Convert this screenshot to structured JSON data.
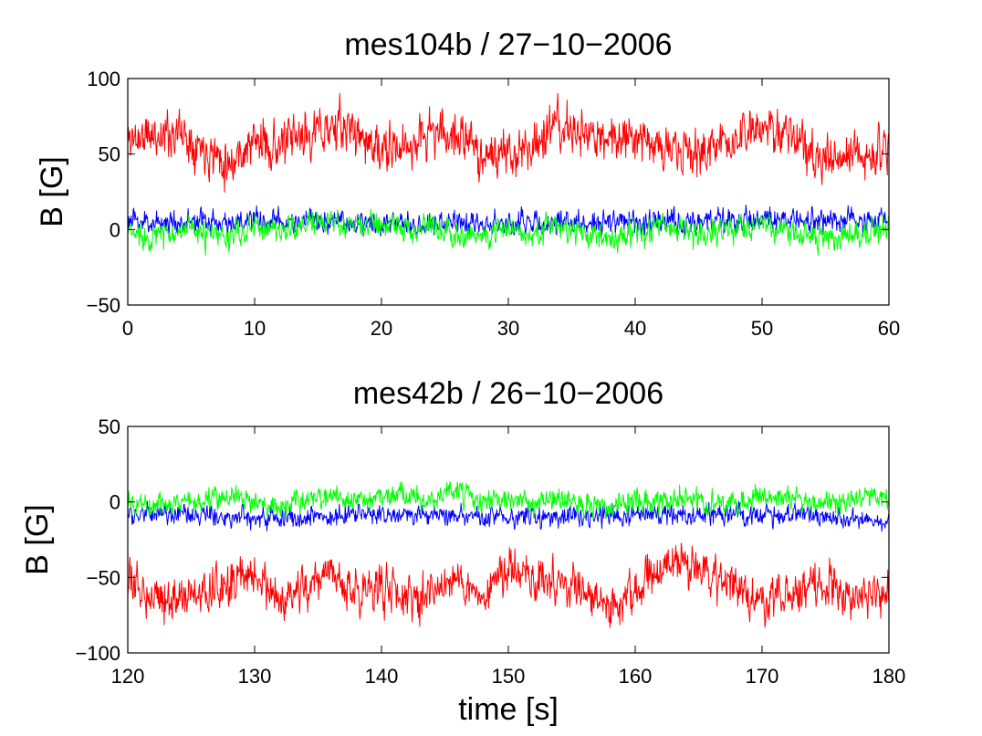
{
  "chart_data": [
    {
      "type": "line",
      "title": "mes104b / 27−10−2006",
      "xlabel": "",
      "ylabel": "B [G]",
      "xlim": [
        0,
        60
      ],
      "ylim": [
        -50,
        100
      ],
      "xticks": [
        0,
        10,
        20,
        30,
        40,
        50,
        60
      ],
      "xtick_labels": [
        "0",
        "10",
        "20",
        "30",
        "40",
        "50",
        "60"
      ],
      "yticks": [
        -50,
        0,
        50,
        100
      ],
      "ytick_labels": [
        "−50",
        "0",
        "50",
        "100"
      ],
      "series": [
        {
          "name": "red",
          "color": "#ff0000",
          "x": [
            0,
            2,
            4,
            6,
            8,
            10,
            12,
            14,
            16,
            18,
            20,
            22,
            24,
            26,
            28,
            30,
            32,
            34,
            36,
            38,
            40,
            42,
            44,
            46,
            48,
            50,
            52,
            54,
            56,
            58,
            60
          ],
          "mean": [
            60,
            62,
            65,
            55,
            45,
            58,
            55,
            62,
            68,
            65,
            50,
            55,
            65,
            62,
            50,
            48,
            58,
            68,
            62,
            60,
            65,
            55,
            48,
            55,
            60,
            65,
            68,
            45,
            45,
            50,
            55
          ],
          "noise": 14,
          "seed": 11
        },
        {
          "name": "blue",
          "color": "#0000ff",
          "x": [
            0,
            10,
            20,
            30,
            40,
            50,
            60
          ],
          "mean": [
            5,
            5,
            5,
            4,
            5,
            6,
            5
          ],
          "noise": 7,
          "seed": 23
        },
        {
          "name": "green",
          "color": "#00ff00",
          "x": [
            0,
            2,
            4,
            6,
            8,
            10,
            12,
            14,
            16,
            18,
            20,
            22,
            24,
            26,
            28,
            30,
            32,
            34,
            36,
            38,
            40,
            42,
            44,
            46,
            48,
            50,
            52,
            54,
            56,
            58,
            60
          ],
          "mean": [
            -2,
            -5,
            0,
            -3,
            -6,
            2,
            0,
            3,
            5,
            2,
            4,
            0,
            3,
            -2,
            -5,
            0,
            -2,
            3,
            -4,
            -6,
            -2,
            2,
            -1,
            -3,
            0,
            2,
            0,
            -4,
            -6,
            -2,
            3
          ],
          "noise": 8,
          "seed": 37
        }
      ]
    },
    {
      "type": "line",
      "title": "mes42b / 26−10−2006",
      "xlabel": "time [s]",
      "ylabel": "B [G]",
      "xlim": [
        120,
        180
      ],
      "ylim": [
        -100,
        50
      ],
      "xticks": [
        120,
        130,
        140,
        150,
        160,
        170,
        180
      ],
      "xtick_labels": [
        "120",
        "130",
        "140",
        "150",
        "160",
        "170",
        "180"
      ],
      "yticks": [
        -100,
        -50,
        0,
        50
      ],
      "ytick_labels": [
        "−100",
        "−50",
        "0",
        "50"
      ],
      "series": [
        {
          "name": "red",
          "color": "#ff0000",
          "x": [
            120,
            122,
            124,
            126,
            128,
            130,
            132,
            134,
            136,
            138,
            140,
            142,
            144,
            146,
            148,
            150,
            152,
            154,
            156,
            158,
            160,
            162,
            164,
            166,
            168,
            170,
            172,
            174,
            176,
            178,
            180
          ],
          "mean": [
            -55,
            -60,
            -65,
            -60,
            -55,
            -45,
            -70,
            -55,
            -50,
            -60,
            -55,
            -65,
            -58,
            -50,
            -62,
            -45,
            -50,
            -55,
            -58,
            -70,
            -60,
            -45,
            -40,
            -55,
            -60,
            -65,
            -62,
            -55,
            -60,
            -65,
            -60
          ],
          "noise": 13,
          "seed": 53
        },
        {
          "name": "blue",
          "color": "#0000ff",
          "x": [
            120,
            130,
            140,
            150,
            160,
            170,
            180
          ],
          "mean": [
            -8,
            -10,
            -8,
            -10,
            -9,
            -8,
            -12
          ],
          "noise": 6,
          "seed": 71
        },
        {
          "name": "green",
          "color": "#00ff00",
          "x": [
            120,
            122,
            124,
            126,
            128,
            130,
            132,
            134,
            136,
            138,
            140,
            142,
            144,
            146,
            148,
            150,
            152,
            154,
            156,
            158,
            160,
            162,
            164,
            166,
            168,
            170,
            172,
            174,
            176,
            178,
            180
          ],
          "mean": [
            0,
            -2,
            0,
            2,
            5,
            0,
            -3,
            2,
            4,
            0,
            3,
            5,
            2,
            8,
            0,
            2,
            0,
            3,
            -2,
            -5,
            2,
            0,
            3,
            -2,
            0,
            2,
            5,
            0,
            -2,
            3,
            2
          ],
          "noise": 7,
          "seed": 89
        }
      ]
    }
  ]
}
